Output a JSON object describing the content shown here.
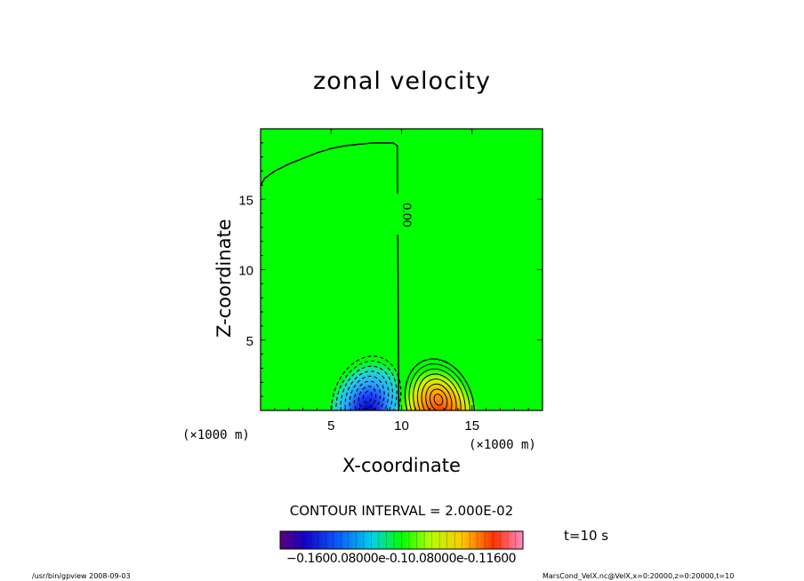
{
  "chart_data": {
    "type": "contour",
    "title": "zonal velocity",
    "xlabel": "X-coordinate",
    "ylabel": "Z-coordinate",
    "x_unit": "(×1000 m)",
    "y_unit": "(×1000 m)",
    "xlim": [
      0,
      20
    ],
    "ylim": [
      0,
      20
    ],
    "xticks": [
      5,
      10,
      15
    ],
    "yticks": [
      5,
      10,
      15
    ],
    "contour_interval_text": "CONTOUR INTERVAL = 2.000E-02",
    "contour_label": "0.00",
    "time_text": "t=10 s",
    "colorbar_tick_text": "−0.1600.08000e-0.10.08000e-0.11600",
    "colorbar_range": [
      -0.16,
      0.16
    ],
    "field_extrema": [
      {
        "sign": "negative",
        "x": 7.6,
        "z": 1.0,
        "value": -0.16
      },
      {
        "sign": "positive",
        "x": 12.6,
        "z": 0.8,
        "value": 0.16
      }
    ],
    "zero_contour": [
      [
        0.0,
        16.0
      ],
      [
        0.3,
        16.5
      ],
      [
        1.0,
        17.0
      ],
      [
        2.0,
        17.5
      ],
      [
        3.0,
        17.9
      ],
      [
        4.0,
        18.3
      ],
      [
        5.0,
        18.6
      ],
      [
        6.0,
        18.8
      ],
      [
        7.0,
        18.9
      ],
      [
        8.0,
        19.0
      ],
      [
        9.4,
        19.0
      ],
      [
        9.7,
        18.8
      ],
      [
        9.8,
        0.0
      ]
    ]
  },
  "footer": {
    "left": "/usr/bin/gpview   2008-09-03",
    "right": "MarsCond_VelX.nc@VelX,x=0:20000,z=0:20000,t=10"
  },
  "colors": {
    "background": "#00ff00",
    "negative_core": "#0000cc",
    "positive_core": "#ff0000"
  }
}
